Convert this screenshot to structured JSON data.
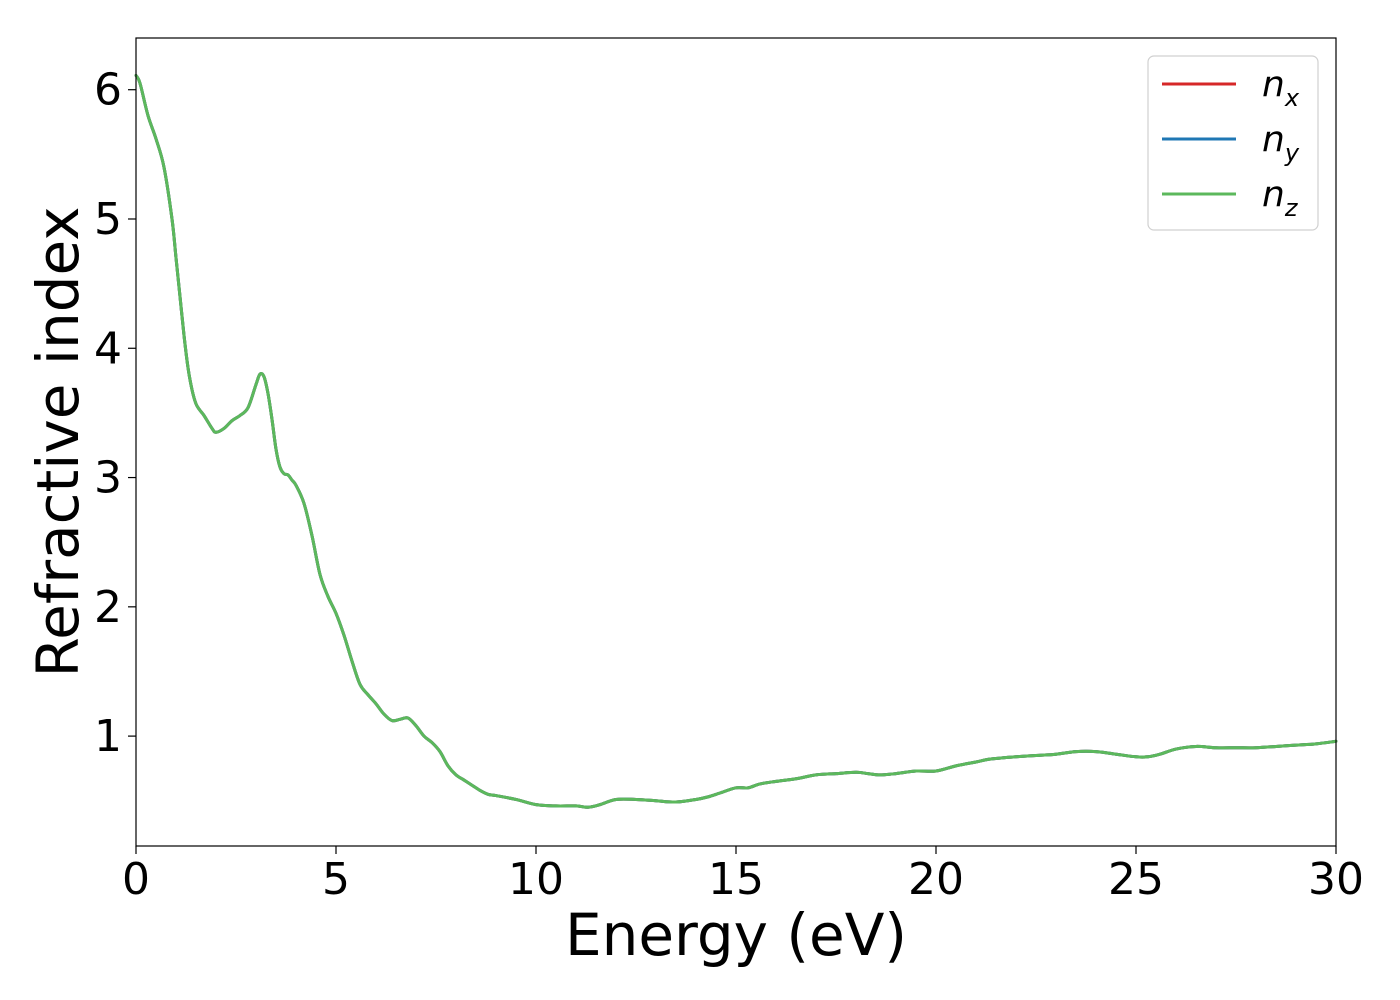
{
  "chart_data": {
    "type": "line",
    "xlabel": "Energy (eV)",
    "ylabel": "Refractive index",
    "xlim": [
      0,
      30
    ],
    "ylim": [
      0.15,
      6.4
    ],
    "xticks": [
      0,
      5,
      10,
      15,
      20,
      25,
      30
    ],
    "xtick_labels": [
      "0",
      "5",
      "10",
      "15",
      "20",
      "25",
      "30"
    ],
    "yticks": [
      1,
      2,
      3,
      4,
      5,
      6
    ],
    "ytick_labels": [
      "1",
      "2",
      "3",
      "4",
      "5",
      "6"
    ],
    "grid": false,
    "legend_position": "top-right",
    "legend": [
      {
        "base": "n",
        "sub": "x",
        "color": "#d62728"
      },
      {
        "base": "n",
        "sub": "y",
        "color": "#1f77b4"
      },
      {
        "base": "n",
        "sub": "z",
        "color": "#5cb85c"
      }
    ],
    "x": [
      0,
      0.1,
      0.3,
      0.5,
      0.7,
      0.9,
      1.0,
      1.1,
      1.2,
      1.3,
      1.4,
      1.5,
      1.6,
      1.7,
      1.9,
      2.0,
      2.2,
      2.4,
      2.6,
      2.8,
      3.0,
      3.1,
      3.2,
      3.3,
      3.4,
      3.5,
      3.6,
      3.7,
      3.8,
      3.9,
      4.0,
      4.2,
      4.4,
      4.6,
      4.8,
      5.0,
      5.2,
      5.4,
      5.6,
      5.8,
      6.0,
      6.2,
      6.4,
      6.6,
      6.8,
      7.0,
      7.2,
      7.4,
      7.6,
      7.8,
      8.0,
      8.2,
      8.4,
      8.6,
      8.8,
      9.0,
      9.5,
      10.0,
      10.5,
      11.0,
      11.3,
      11.6,
      12.0,
      12.5,
      13.0,
      13.5,
      14.0,
      14.3,
      14.6,
      15.0,
      15.3,
      15.6,
      16.0,
      16.5,
      17.0,
      17.5,
      18.0,
      18.3,
      18.6,
      19.0,
      19.5,
      20.0,
      20.5,
      21.0,
      21.3,
      21.6,
      22.0,
      22.5,
      23.0,
      23.5,
      24.0,
      24.5,
      25.0,
      25.3,
      25.6,
      26.0,
      26.5,
      27.0,
      27.5,
      28.0,
      28.5,
      29.0,
      29.5,
      30.0
    ],
    "series": [
      {
        "name": "n_x",
        "color": "#d62728",
        "values": [
          6.11,
          6.05,
          5.8,
          5.62,
          5.4,
          5.0,
          4.7,
          4.4,
          4.1,
          3.85,
          3.68,
          3.57,
          3.52,
          3.48,
          3.38,
          3.35,
          3.38,
          3.44,
          3.48,
          3.54,
          3.72,
          3.8,
          3.78,
          3.65,
          3.45,
          3.22,
          3.08,
          3.03,
          3.02,
          2.98,
          2.94,
          2.8,
          2.55,
          2.25,
          2.08,
          1.95,
          1.78,
          1.58,
          1.4,
          1.32,
          1.25,
          1.17,
          1.12,
          1.13,
          1.14,
          1.08,
          1.0,
          0.95,
          0.88,
          0.77,
          0.7,
          0.66,
          0.62,
          0.58,
          0.55,
          0.54,
          0.51,
          0.47,
          0.46,
          0.46,
          0.45,
          0.47,
          0.51,
          0.51,
          0.5,
          0.49,
          0.51,
          0.53,
          0.56,
          0.6,
          0.6,
          0.63,
          0.65,
          0.67,
          0.7,
          0.71,
          0.72,
          0.71,
          0.7,
          0.71,
          0.73,
          0.73,
          0.77,
          0.8,
          0.82,
          0.83,
          0.84,
          0.85,
          0.86,
          0.88,
          0.88,
          0.86,
          0.84,
          0.84,
          0.86,
          0.9,
          0.92,
          0.91,
          0.91,
          0.91,
          0.92,
          0.93,
          0.94,
          0.96
        ]
      },
      {
        "name": "n_y",
        "color": "#1f77b4",
        "values": [
          6.11,
          6.05,
          5.8,
          5.62,
          5.4,
          5.0,
          4.7,
          4.4,
          4.1,
          3.85,
          3.68,
          3.57,
          3.52,
          3.48,
          3.38,
          3.35,
          3.38,
          3.44,
          3.48,
          3.54,
          3.72,
          3.8,
          3.78,
          3.65,
          3.45,
          3.22,
          3.08,
          3.03,
          3.02,
          2.98,
          2.94,
          2.8,
          2.55,
          2.25,
          2.08,
          1.95,
          1.78,
          1.58,
          1.4,
          1.32,
          1.25,
          1.17,
          1.12,
          1.13,
          1.14,
          1.08,
          1.0,
          0.95,
          0.88,
          0.77,
          0.7,
          0.66,
          0.62,
          0.58,
          0.55,
          0.54,
          0.51,
          0.47,
          0.46,
          0.46,
          0.45,
          0.47,
          0.51,
          0.51,
          0.5,
          0.49,
          0.51,
          0.53,
          0.56,
          0.6,
          0.6,
          0.63,
          0.65,
          0.67,
          0.7,
          0.71,
          0.72,
          0.71,
          0.7,
          0.71,
          0.73,
          0.73,
          0.77,
          0.8,
          0.82,
          0.83,
          0.84,
          0.85,
          0.86,
          0.88,
          0.88,
          0.86,
          0.84,
          0.84,
          0.86,
          0.9,
          0.92,
          0.91,
          0.91,
          0.91,
          0.92,
          0.93,
          0.94,
          0.96
        ]
      },
      {
        "name": "n_z",
        "color": "#5cb85c",
        "values": [
          6.11,
          6.05,
          5.8,
          5.62,
          5.4,
          5.0,
          4.7,
          4.4,
          4.1,
          3.85,
          3.68,
          3.57,
          3.52,
          3.48,
          3.38,
          3.35,
          3.38,
          3.44,
          3.48,
          3.54,
          3.72,
          3.8,
          3.78,
          3.65,
          3.45,
          3.22,
          3.08,
          3.03,
          3.02,
          2.98,
          2.94,
          2.8,
          2.55,
          2.25,
          2.08,
          1.95,
          1.78,
          1.58,
          1.4,
          1.32,
          1.25,
          1.17,
          1.12,
          1.13,
          1.14,
          1.08,
          1.0,
          0.95,
          0.88,
          0.77,
          0.7,
          0.66,
          0.62,
          0.58,
          0.55,
          0.54,
          0.51,
          0.47,
          0.46,
          0.46,
          0.45,
          0.47,
          0.51,
          0.51,
          0.5,
          0.49,
          0.51,
          0.53,
          0.56,
          0.6,
          0.6,
          0.63,
          0.65,
          0.67,
          0.7,
          0.71,
          0.72,
          0.71,
          0.7,
          0.71,
          0.73,
          0.73,
          0.77,
          0.8,
          0.82,
          0.83,
          0.84,
          0.85,
          0.86,
          0.88,
          0.88,
          0.86,
          0.84,
          0.84,
          0.86,
          0.9,
          0.92,
          0.91,
          0.91,
          0.91,
          0.92,
          0.93,
          0.94,
          0.96
        ]
      }
    ]
  }
}
